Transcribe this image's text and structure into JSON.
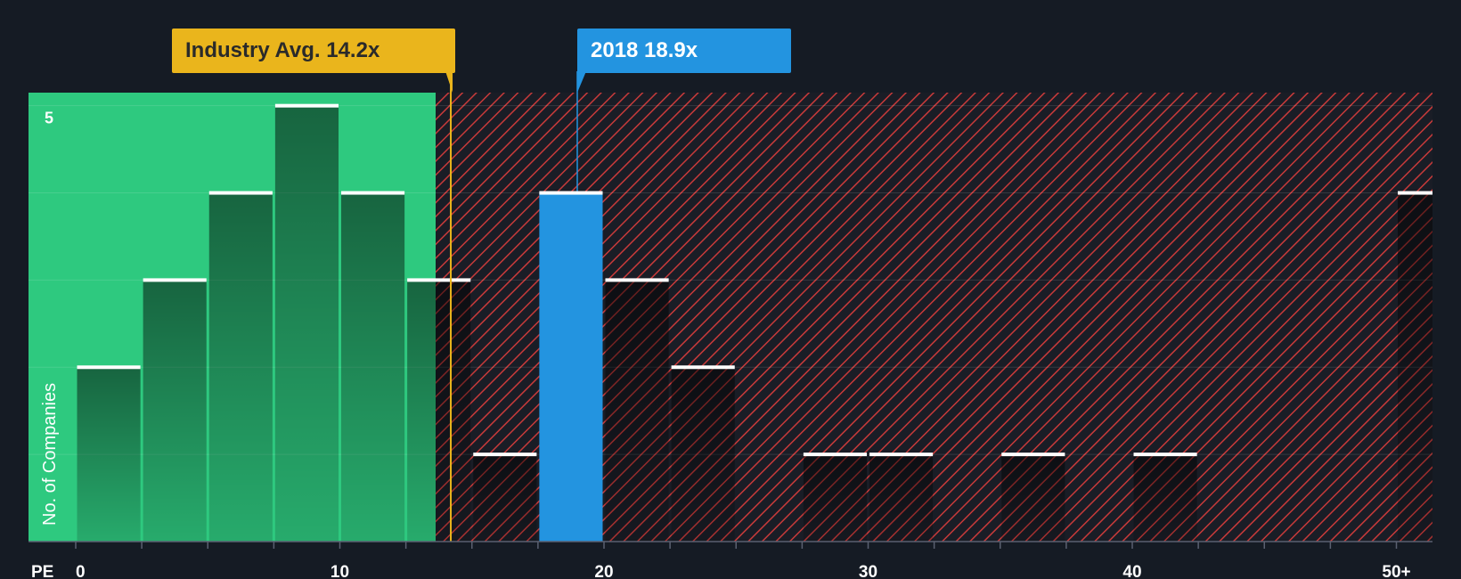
{
  "chart_data": {
    "type": "bar",
    "x_axis_label": "PE",
    "y_axis_label": "No. of Companies",
    "y_tick_labels": [
      {
        "value": 5,
        "label": "5"
      }
    ],
    "ylim": [
      0,
      5.15
    ],
    "bin_width": 2.5,
    "bins": [
      {
        "start": 0,
        "count": 2
      },
      {
        "start": 2.5,
        "count": 3
      },
      {
        "start": 5,
        "count": 4
      },
      {
        "start": 7.5,
        "count": 5
      },
      {
        "start": 10,
        "count": 4
      },
      {
        "start": 12.5,
        "count": 3
      },
      {
        "start": 15,
        "count": 1
      },
      {
        "start": 17.5,
        "count": 4,
        "highlight": true
      },
      {
        "start": 20,
        "count": 3
      },
      {
        "start": 22.5,
        "count": 2
      },
      {
        "start": 25,
        "count": 0
      },
      {
        "start": 27.5,
        "count": 1
      },
      {
        "start": 30,
        "count": 1
      },
      {
        "start": 32.5,
        "count": 0
      },
      {
        "start": 35,
        "count": 1
      },
      {
        "start": 37.5,
        "count": 0
      },
      {
        "start": 40,
        "count": 1
      },
      {
        "start": 42.5,
        "count": 0
      },
      {
        "start": 45,
        "count": 0
      },
      {
        "start": 47.5,
        "count": 0
      },
      {
        "start": 50,
        "count": 4,
        "label": "50+"
      }
    ],
    "x_ticks": [
      {
        "value": 0,
        "label": "0"
      },
      {
        "value": 10,
        "label": "10"
      },
      {
        "value": 20,
        "label": "20"
      },
      {
        "value": 30,
        "label": "30"
      },
      {
        "value": 40,
        "label": "40"
      },
      {
        "value": 50,
        "label": "50+"
      }
    ],
    "industry_average": {
      "value": 14.2,
      "label": "Industry Avg. 14.2x"
    },
    "company": {
      "value": 18.9,
      "label": "2018 18.9x"
    },
    "colors": {
      "background": "#151b24",
      "below_average": "#2ec97f",
      "above_average_stripe": "#c83a3a",
      "industry": "#eab51c",
      "company": "#2394e0"
    }
  }
}
